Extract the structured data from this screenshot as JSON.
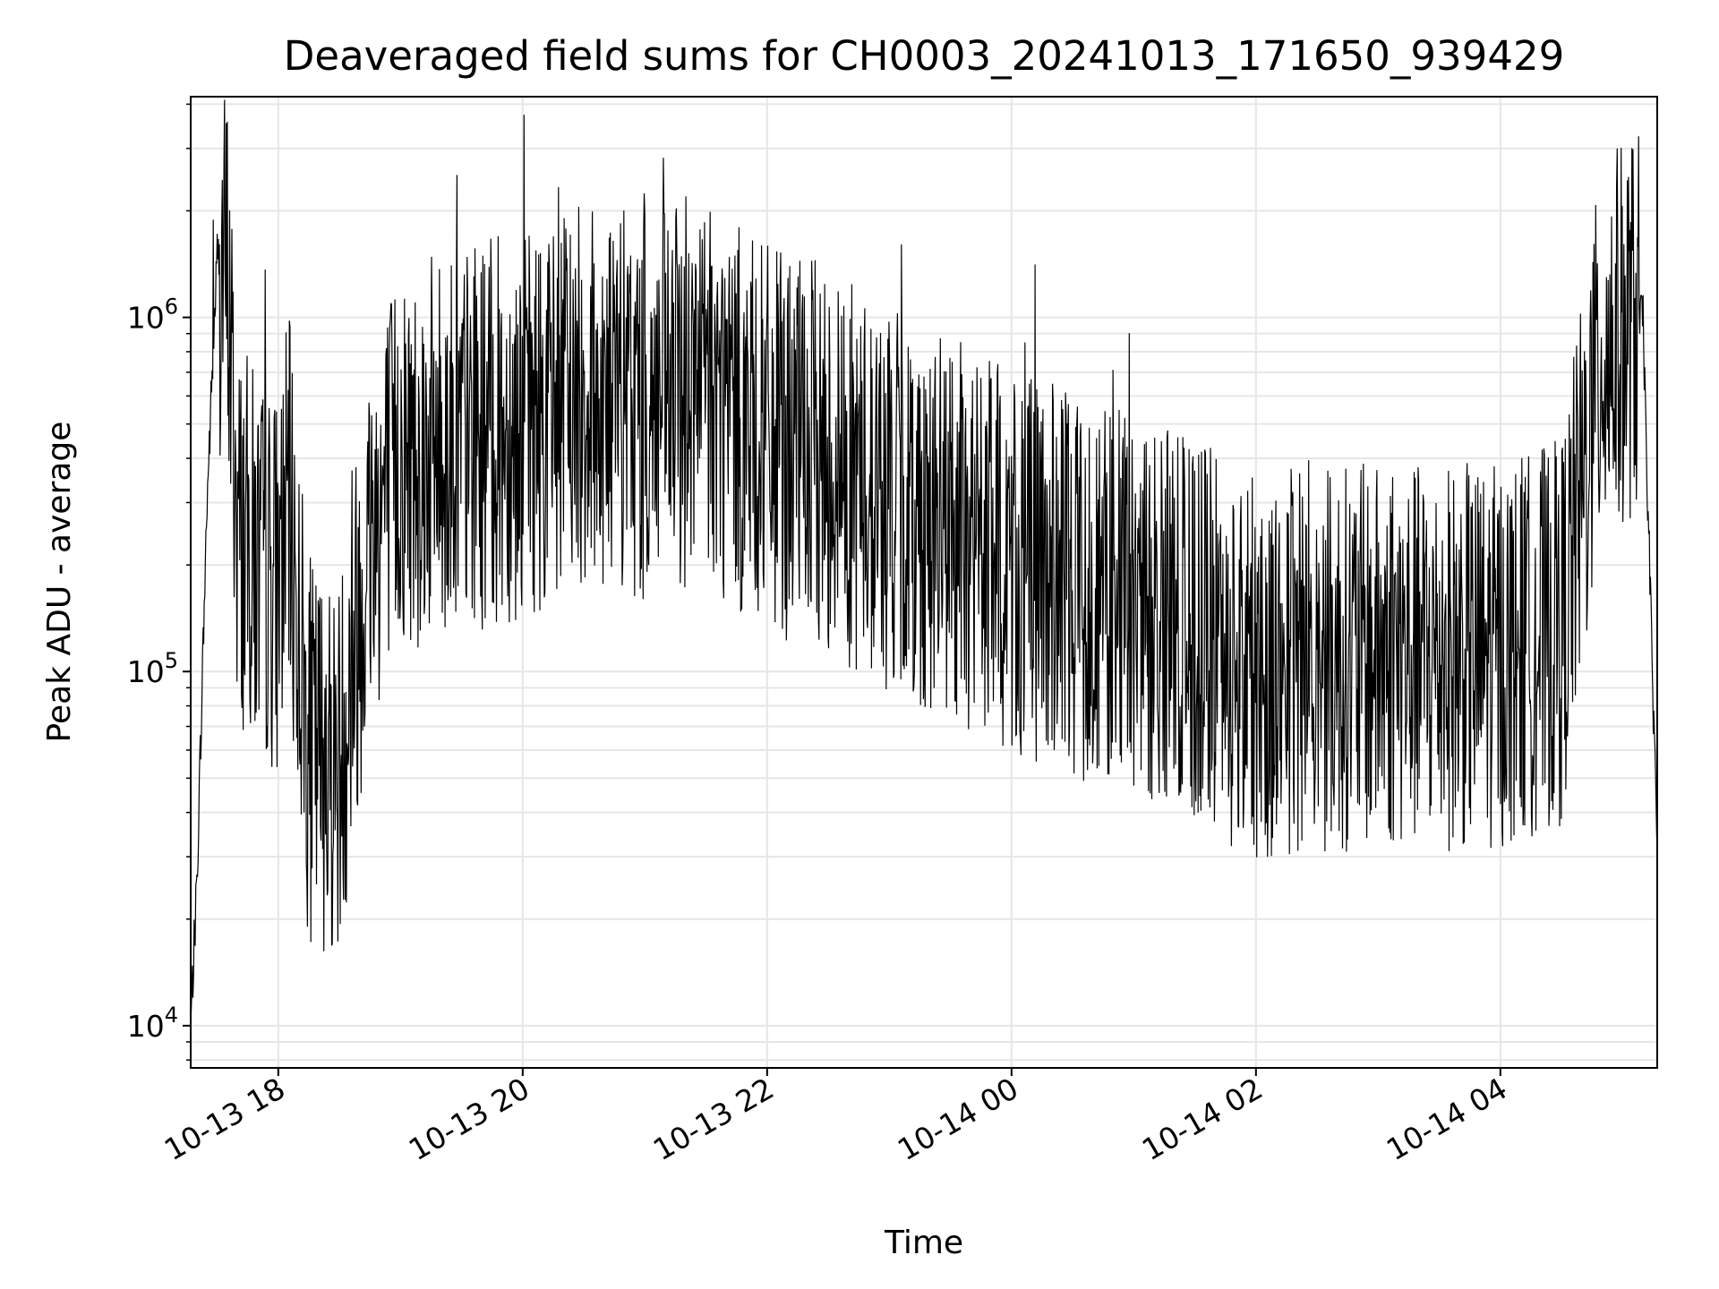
{
  "chart_data": {
    "type": "line",
    "title": "Deaveraged field sums for CH0003_20241013_171650_939429",
    "xlabel": "Time",
    "ylabel": "Peak ADU - average",
    "yscale": "log",
    "ylim": [
      7600,
      4200000
    ],
    "xlim": [
      "2024-10-13 17:17",
      "2024-10-14 05:17"
    ],
    "grid": true,
    "line_color": "#000000",
    "grid_color": "#e6e6e6",
    "x_ticks": [
      "10-13 18",
      "10-13 20",
      "10-13 22",
      "10-14 00",
      "10-14 02",
      "10-14 04"
    ],
    "y_ticks": [
      {
        "base": "10",
        "exp": "4",
        "value": 10000
      },
      {
        "base": "10",
        "exp": "5",
        "value": 100000
      },
      {
        "base": "10",
        "exp": "6",
        "value": 1000000
      }
    ],
    "series": [
      {
        "x": [
          "2024-10-13 17:17",
          "2024-10-13 17:20",
          "2024-10-13 17:25",
          "2024-10-13 17:30",
          "2024-10-13 17:35",
          "2024-10-13 17:40",
          "2024-10-13 17:50",
          "2024-10-13 18:00",
          "2024-10-13 18:05",
          "2024-10-13 18:15",
          "2024-10-13 18:30",
          "2024-10-13 18:45",
          "2024-10-13 19:00",
          "2024-10-13 19:30",
          "2024-10-13 20:00",
          "2024-10-13 20:30",
          "2024-10-13 21:00",
          "2024-10-13 21:30",
          "2024-10-13 22:00",
          "2024-10-13 22:30",
          "2024-10-13 23:00",
          "2024-10-13 23:30",
          "2024-10-14 00:00",
          "2024-10-14 00:30",
          "2024-10-14 01:00",
          "2024-10-14 01:30",
          "2024-10-14 02:00",
          "2024-10-14 02:30",
          "2024-10-14 03:00",
          "2024-10-14 03:30",
          "2024-10-14 04:00",
          "2024-10-14 04:30",
          "2024-10-14 04:50",
          "2024-10-14 05:10",
          "2024-10-14 05:17"
        ],
        "values": [
          10000,
          25000,
          300000,
          1500000,
          1300000,
          250000,
          200000,
          180000,
          300000,
          60000,
          55000,
          250000,
          400000,
          450000,
          500000,
          600000,
          550000,
          600000,
          450000,
          400000,
          300000,
          250000,
          200000,
          180000,
          150000,
          130000,
          100000,
          110000,
          110000,
          110000,
          110000,
          130000,
          800000,
          1000000,
          30000
        ]
      }
    ]
  }
}
